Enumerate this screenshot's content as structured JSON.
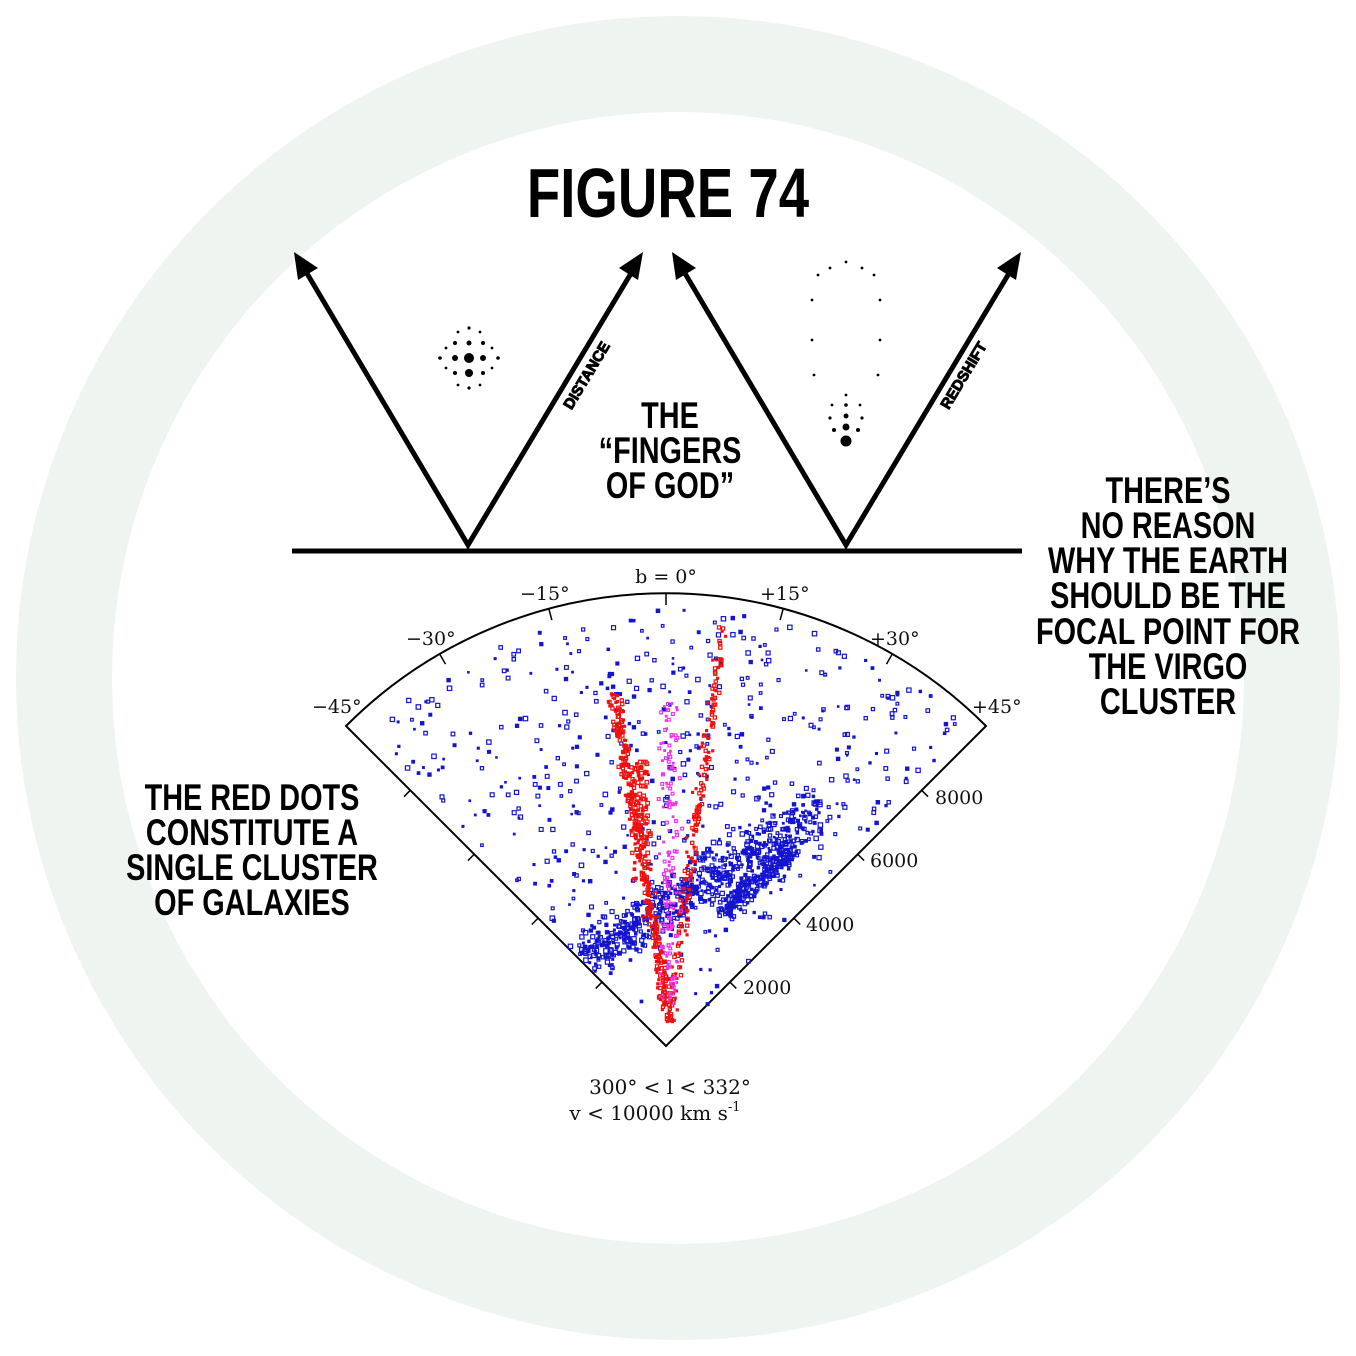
{
  "colors": {
    "ring": "#eef4ef",
    "background": "#ffffff",
    "ink": "#000000",
    "red_cluster": "#ee1111",
    "magenta_cluster": "#ee33ee",
    "blue_field": "#1515d0"
  },
  "title": "FIGURE 74",
  "fingers_label": [
    "THE",
    "“FINGERS",
    "OF GOD”"
  ],
  "right_annotation": [
    "THERE’S",
    "NO REASON",
    "WHY THE EARTH",
    "SHOULD BE THE",
    "FOCAL POINT FOR",
    "THE VIRGO",
    "CLUSTER"
  ],
  "left_annotation": [
    "THE RED DOTS",
    "CONSTITUTE A",
    "SINGLE CLUSTER",
    "OF GALAXIES"
  ],
  "schematic": {
    "left_axis_label": "DISTANCE",
    "right_axis_label": "REDSHIFT"
  },
  "survey_plot": {
    "b_label": "b = 0°",
    "angle_labels": [
      "−45°",
      "−30°",
      "−15°",
      "+15°",
      "+30°",
      "+45°"
    ],
    "velocity_labels": [
      "2000",
      "4000",
      "6000",
      "8000"
    ],
    "caption_line1": "300° < l < 332°",
    "caption_line2": "v < 10000 km s",
    "caption_superscript": "-1"
  }
}
